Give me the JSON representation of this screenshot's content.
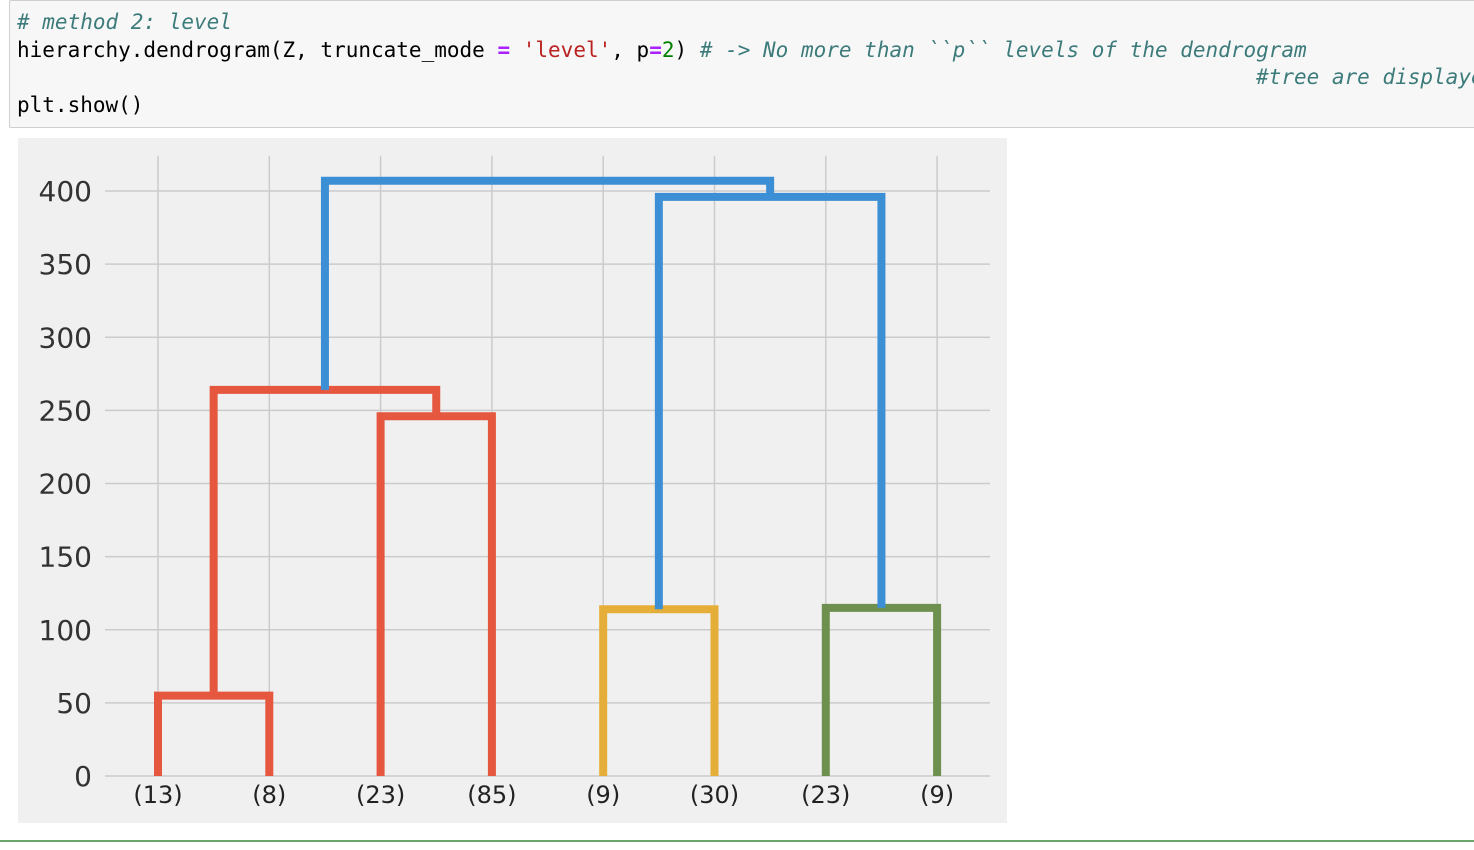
{
  "code_cell": {
    "line1": "# method 2: level",
    "line2_fn": "hierarchy.dendrogram(Z, truncate_mode ",
    "line2_eq": "=",
    "line2_str": "'level'",
    "line2_comma": ", p",
    "line2_eq2": "=",
    "line2_num": "2",
    "line2_close": ") ",
    "line2_comment": "# -> No more than ``p`` levels of the dendrogram",
    "line3_comment": "#tree are displayed.",
    "line4": "plt.show()"
  },
  "chart_data": {
    "type": "dendrogram",
    "leaf_labels": [
      "(13)",
      "(8)",
      "(23)",
      "(85)",
      "(9)",
      "(30)",
      "(23)",
      "(9)"
    ],
    "yticks": [
      0,
      50,
      100,
      150,
      200,
      250,
      300,
      350,
      400
    ],
    "ylim": [
      0,
      424
    ],
    "grid": true,
    "colors": {
      "background": "#f0f0f0",
      "grid": "#cbcbcb",
      "C1": "#e5573f",
      "C2": "#e5ae38",
      "C3": "#6d904f",
      "above_threshold": "#3d8fd5"
    },
    "links": [
      {
        "leaves": [
          0,
          1
        ],
        "left_height": 0,
        "right_height": 0,
        "height": 55,
        "color": "C1"
      },
      {
        "leaves": [
          2,
          3
        ],
        "left_height": 0,
        "right_height": 0,
        "height": 246,
        "color": "C1"
      },
      {
        "leaves": [
          0.5,
          2.5
        ],
        "left_height": 55,
        "right_height": 246,
        "height": 264,
        "color": "C1"
      },
      {
        "leaves": [
          4,
          5
        ],
        "left_height": 0,
        "right_height": 0,
        "height": 114,
        "color": "C2"
      },
      {
        "leaves": [
          6,
          7
        ],
        "left_height": 0,
        "right_height": 0,
        "height": 115,
        "color": "C3"
      },
      {
        "leaves": [
          4.5,
          6.5
        ],
        "left_height": 114,
        "right_height": 115,
        "height": 396,
        "color": "above_threshold"
      },
      {
        "leaves": [
          1.5,
          5.5
        ],
        "left_height": 264,
        "right_height": 396,
        "height": 407,
        "color": "above_threshold"
      }
    ]
  }
}
